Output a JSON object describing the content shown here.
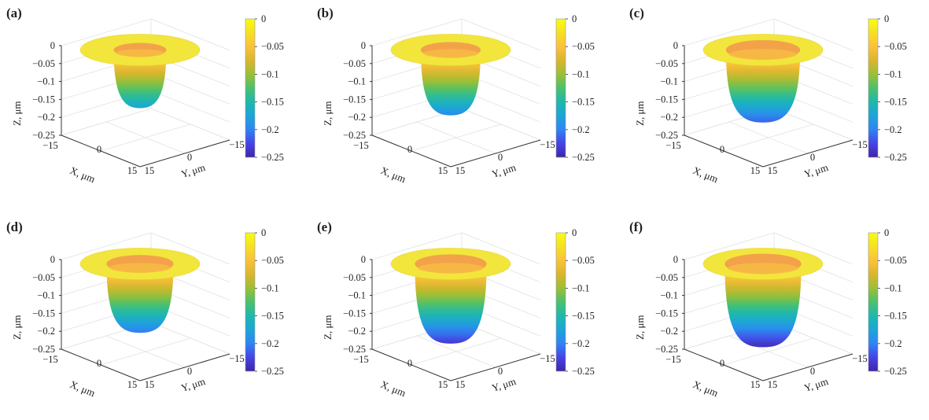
{
  "colormap": [
    "#3e26a8",
    "#4743e6",
    "#2f84f4",
    "#1ca5d8",
    "#1eb8ad",
    "#4ac16d",
    "#9bbf36",
    "#d9b62d",
    "#fbc23b",
    "#f6e022",
    "#f9fb15"
  ],
  "chart_data": [
    {
      "type": "surface",
      "panel_label": "(a)",
      "depth": 0.17,
      "inner_radius": 0.44,
      "xlabel": "X, μm",
      "ylabel": "Y, μm",
      "zlabel": "Z, μm",
      "x_ticks": [
        "−15",
        "0",
        "15"
      ],
      "y_ticks": [
        "15",
        "0",
        "−15"
      ],
      "z_ticks": [
        "0",
        "−0.05",
        "−0.1",
        "−0.15",
        "−0.2",
        "−0.25"
      ],
      "zlim": [
        -0.25,
        0
      ],
      "colorbar_ticks": [
        "0",
        "−0.05",
        "−0.1",
        "−0.15",
        "−0.2",
        "−0.25"
      ],
      "grid": true
    },
    {
      "type": "surface",
      "panel_label": "(b)",
      "depth": 0.19,
      "inner_radius": 0.5,
      "xlabel": "X, μm",
      "ylabel": "Y, μm",
      "zlabel": "Z, μm",
      "x_ticks": [
        "−15",
        "0",
        "15"
      ],
      "y_ticks": [
        "15",
        "0",
        "−15"
      ],
      "z_ticks": [
        "0",
        "−0.05",
        "−0.1",
        "−0.15",
        "−0.2",
        "−0.25"
      ],
      "zlim": [
        -0.25,
        0
      ],
      "colorbar_ticks": [
        "0",
        "−0.05",
        "−0.1",
        "−0.15",
        "−0.2",
        "−0.25"
      ],
      "grid": true
    },
    {
      "type": "surface",
      "panel_label": "(c)",
      "depth": 0.21,
      "inner_radius": 0.62,
      "xlabel": "X, μm",
      "ylabel": "Y, μm",
      "zlabel": "Z, μm",
      "x_ticks": [
        "−15",
        "0",
        "15"
      ],
      "y_ticks": [
        "15",
        "0",
        "−15"
      ],
      "z_ticks": [
        "0",
        "−0.05",
        "−0.1",
        "−0.15",
        "−0.2",
        "−0.25"
      ],
      "zlim": [
        -0.25,
        0
      ],
      "colorbar_ticks": [
        "0",
        "−0.05",
        "−0.1",
        "−0.15",
        "−0.2",
        "−0.25"
      ],
      "grid": true
    },
    {
      "type": "surface",
      "panel_label": "(d)",
      "depth": 0.2,
      "inner_radius": 0.56,
      "xlabel": "X, μm",
      "ylabel": "Y, μm",
      "zlabel": "Z, μm",
      "x_ticks": [
        "−15",
        "0",
        "15"
      ],
      "y_ticks": [
        "15",
        "0",
        "−15"
      ],
      "z_ticks": [
        "0",
        "−0.05",
        "−0.1",
        "−0.15",
        "−0.2",
        "−0.25"
      ],
      "zlim": [
        -0.25,
        0
      ],
      "colorbar_ticks": [
        "0",
        "−0.05",
        "−0.1",
        "−0.15",
        "−0.2",
        "−0.25"
      ],
      "grid": true
    },
    {
      "type": "surface",
      "panel_label": "(e)",
      "depth": 0.23,
      "inner_radius": 0.6,
      "xlabel": "X, μm",
      "ylabel": "Y, μm",
      "zlabel": "Z, μm",
      "x_ticks": [
        "−15",
        "0",
        "15"
      ],
      "y_ticks": [
        "15",
        "0",
        "−15"
      ],
      "z_ticks": [
        "0",
        "−0.05",
        "−0.1",
        "−0.15",
        "−0.2",
        "−0.25"
      ],
      "zlim": [
        -0.25,
        0
      ],
      "colorbar_ticks": [
        "0",
        "−0.05",
        "−0.1",
        "−0.15",
        "−0.2",
        "−0.25"
      ],
      "grid": true
    },
    {
      "type": "surface",
      "panel_label": "(f)",
      "depth": 0.24,
      "inner_radius": 0.64,
      "xlabel": "X, μm",
      "ylabel": "Y, μm",
      "zlabel": "Z, μm",
      "x_ticks": [
        "−15",
        "0",
        "15"
      ],
      "y_ticks": [
        "15",
        "0",
        "−15"
      ],
      "z_ticks": [
        "0",
        "−0.05",
        "−0.1",
        "−0.15",
        "−0.2",
        "−0.25"
      ],
      "zlim": [
        -0.25,
        0
      ],
      "colorbar_ticks": [
        "0",
        "−0.05",
        "−0.1",
        "−0.15",
        "−0.2",
        "−0.25"
      ],
      "grid": true
    }
  ]
}
